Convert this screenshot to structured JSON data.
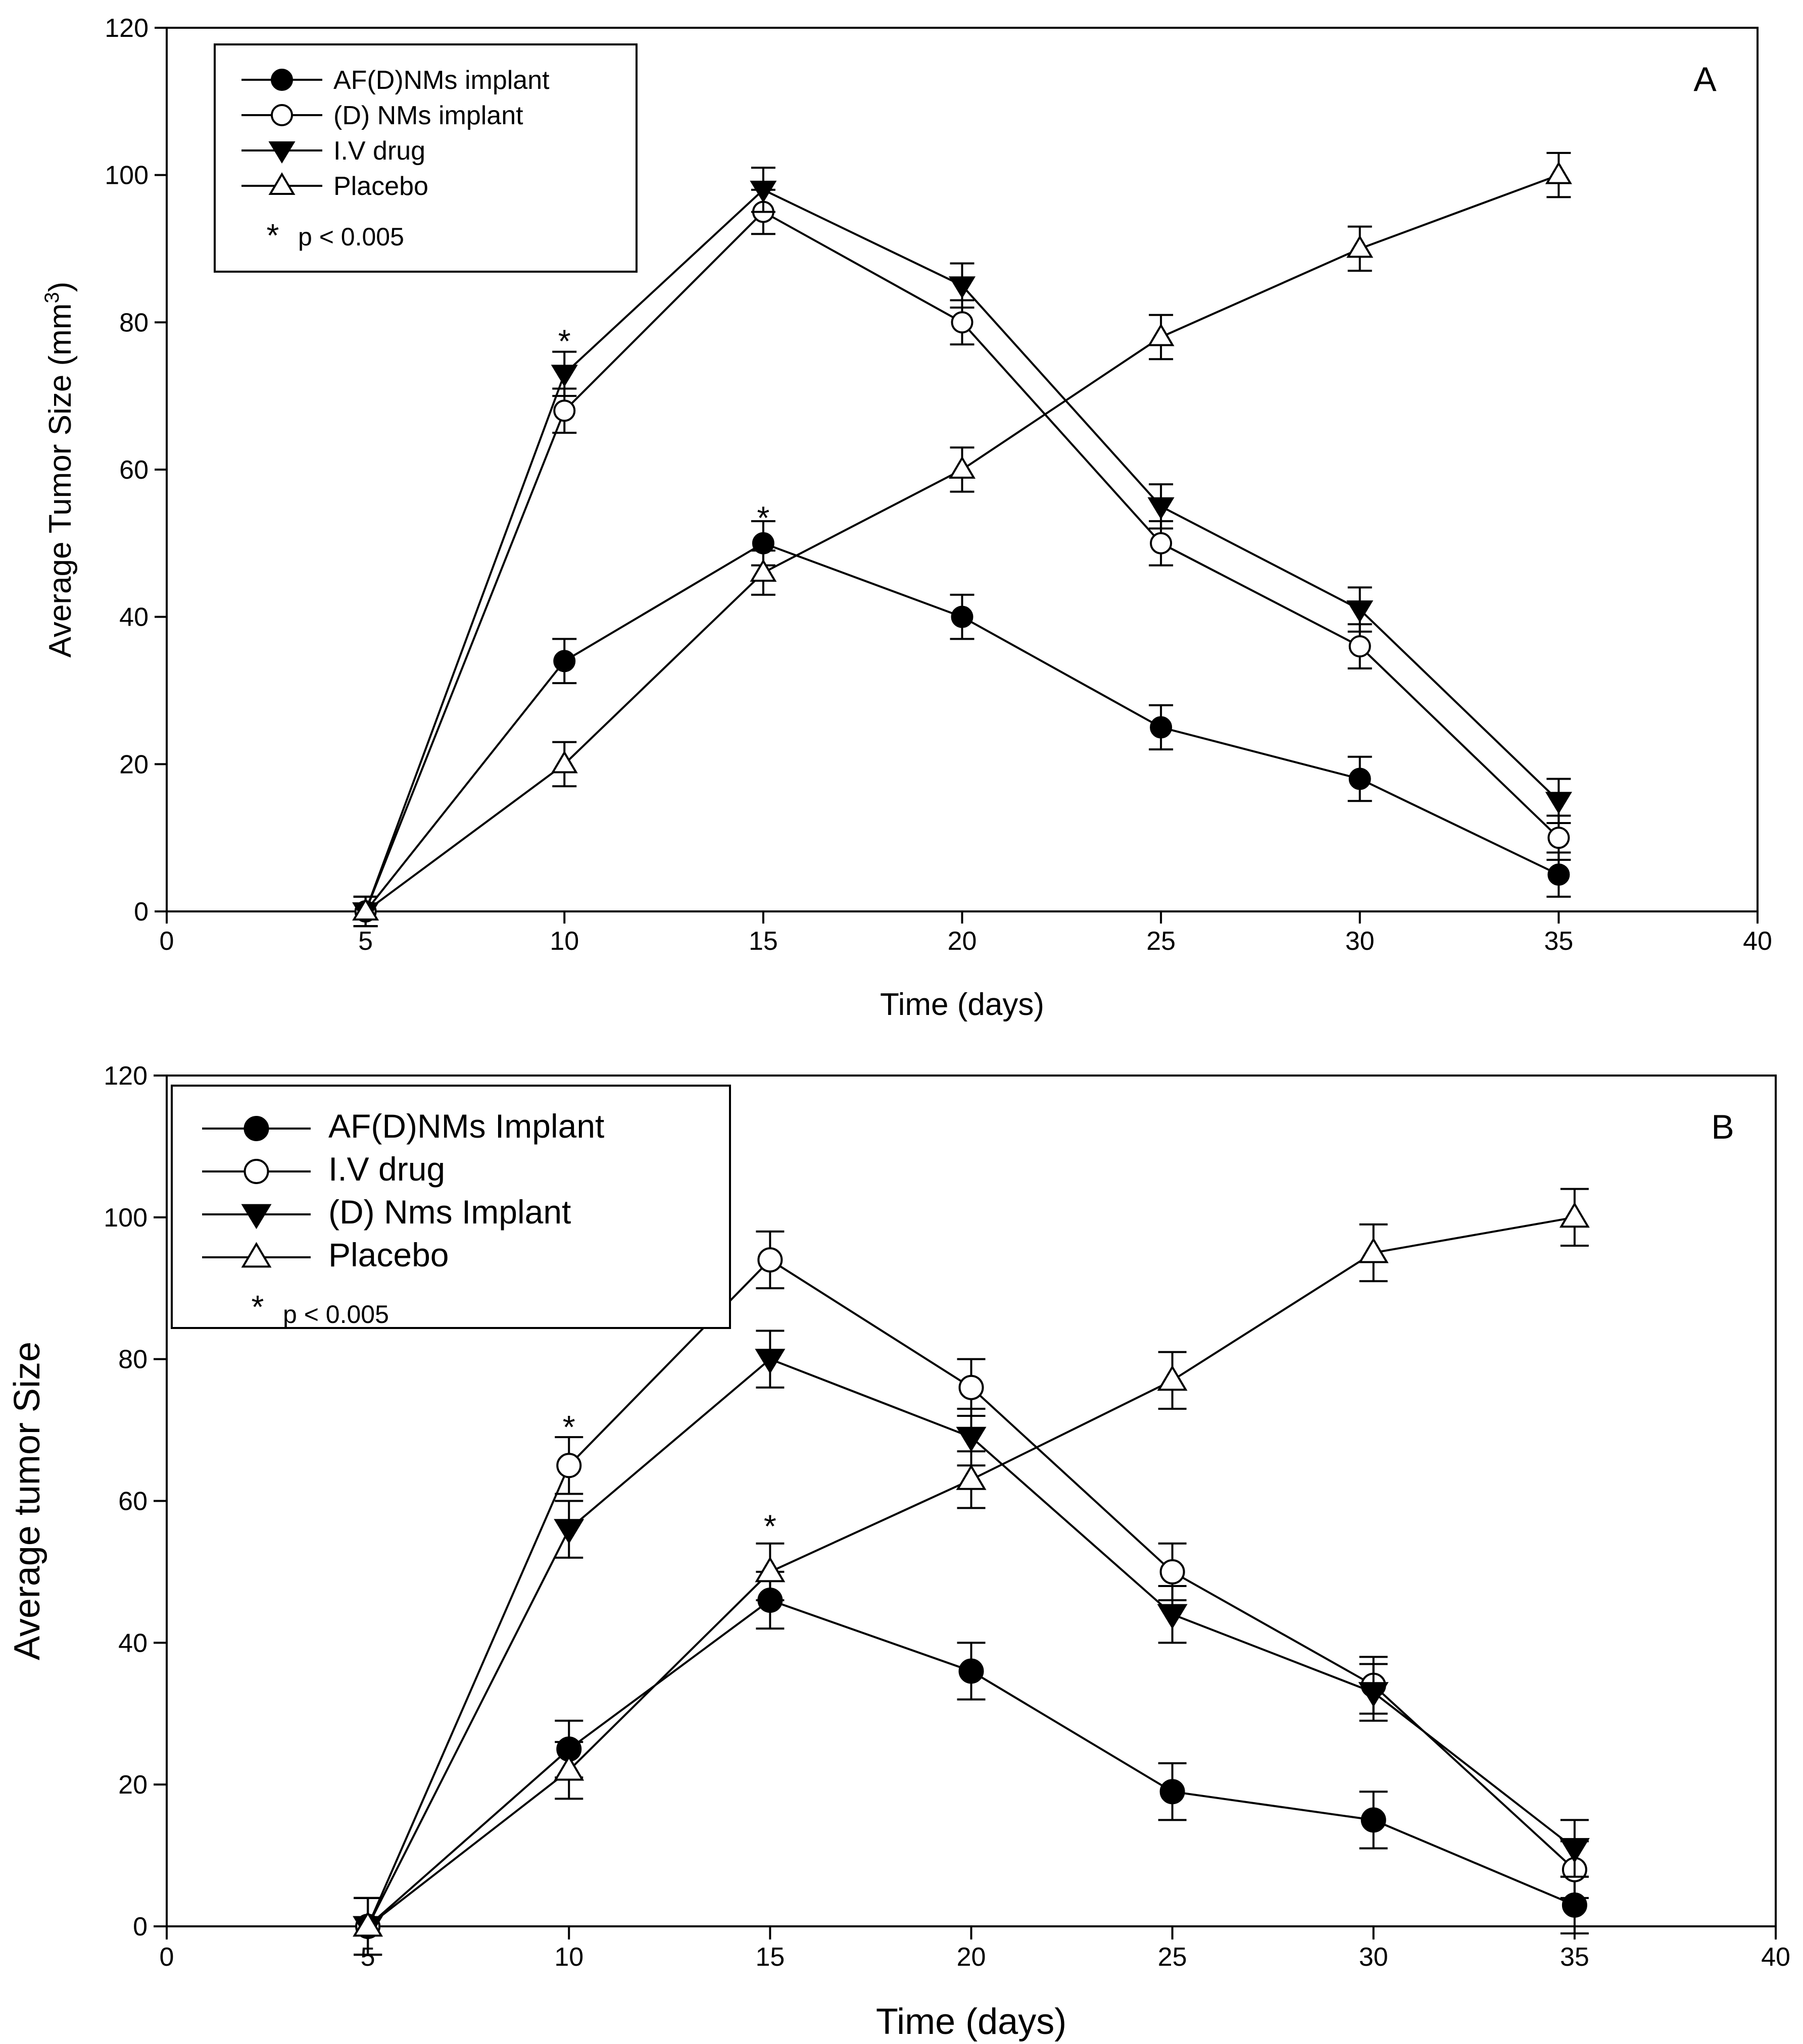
{
  "chart_data": [
    {
      "type": "line",
      "panel": "A",
      "xlabel": "Time (days)",
      "ylabel": "Average Tumor Size (mm",
      "ylabel_sup": "3",
      "ylabel_close": ")",
      "xlim": [
        0,
        40
      ],
      "ylim": [
        0,
        120
      ],
      "xticks": [
        0,
        5,
        10,
        15,
        20,
        25,
        30,
        35,
        40
      ],
      "yticks": [
        0,
        20,
        40,
        60,
        80,
        100,
        120
      ],
      "legend_placement": "top-left",
      "significance_note": "p < 0.005",
      "series": [
        {
          "name": "AF(D)NMs implant",
          "marker": "filled-circle",
          "x": [
            5,
            10,
            15,
            20,
            25,
            30,
            35
          ],
          "values": [
            0,
            34,
            50,
            40,
            25,
            18,
            5
          ],
          "errors": [
            2,
            3,
            3,
            3,
            3,
            3,
            3
          ]
        },
        {
          "name": "(D) NMs implant",
          "marker": "open-circle",
          "x": [
            5,
            10,
            15,
            20,
            25,
            30,
            35
          ],
          "values": [
            0,
            68,
            95,
            80,
            50,
            36,
            10
          ],
          "errors": [
            2,
            3,
            3,
            3,
            3,
            3,
            3
          ]
        },
        {
          "name": "I.V drug",
          "marker": "filled-triangle-down",
          "x": [
            5,
            10,
            15,
            20,
            25,
            30,
            35
          ],
          "values": [
            0,
            73,
            98,
            85,
            55,
            41,
            15
          ],
          "errors": [
            2,
            3,
            3,
            3,
            3,
            3,
            3
          ]
        },
        {
          "name": "Placebo",
          "marker": "open-triangle-up",
          "x": [
            5,
            10,
            15,
            20,
            25,
            30,
            35
          ],
          "values": [
            0,
            20,
            46,
            60,
            78,
            90,
            100
          ],
          "errors": [
            2,
            3,
            3,
            3,
            3,
            3,
            3
          ]
        }
      ],
      "annotations": [
        {
          "text": "*",
          "x": 10,
          "y": 78
        },
        {
          "text": "*",
          "x": 15,
          "y": 54
        }
      ]
    },
    {
      "type": "line",
      "panel": "B",
      "xlabel": "Time (days)",
      "ylabel": "Average tumor Size",
      "xlim": [
        0,
        40
      ],
      "ylim": [
        0,
        120
      ],
      "xticks": [
        0,
        5,
        10,
        15,
        20,
        25,
        30,
        35,
        40
      ],
      "yticks": [
        0,
        20,
        40,
        60,
        80,
        100,
        120
      ],
      "legend_placement": "top-left",
      "significance_note": "p < 0.005",
      "series": [
        {
          "name": "AF(D)NMs Implant",
          "marker": "filled-circle",
          "x": [
            5,
            10,
            15,
            20,
            25,
            30,
            35
          ],
          "values": [
            0,
            25,
            46,
            36,
            19,
            15,
            3
          ],
          "errors": [
            4,
            4,
            4,
            4,
            4,
            4,
            4
          ]
        },
        {
          "name": "I.V drug",
          "marker": "open-circle",
          "x": [
            5,
            10,
            15,
            20,
            25,
            30,
            35
          ],
          "values": [
            0,
            65,
            94,
            76,
            50,
            34,
            8
          ],
          "errors": [
            4,
            4,
            4,
            4,
            4,
            4,
            4
          ]
        },
        {
          "name": "(D) Nms Implant",
          "marker": "filled-triangle-down",
          "x": [
            5,
            10,
            15,
            20,
            25,
            30,
            35
          ],
          "values": [
            0,
            56,
            80,
            69,
            44,
            33,
            11
          ],
          "errors": [
            4,
            4,
            4,
            4,
            4,
            4,
            4
          ]
        },
        {
          "name": "Placebo",
          "marker": "open-triangle-up",
          "x": [
            5,
            10,
            15,
            20,
            25,
            30,
            35
          ],
          "values": [
            0,
            22,
            50,
            63,
            77,
            95,
            100
          ],
          "errors": [
            4,
            4,
            4,
            4,
            4,
            4,
            4
          ]
        }
      ],
      "annotations": [
        {
          "text": "*",
          "x": 10,
          "y": 71
        },
        {
          "text": "*",
          "x": 15,
          "y": 57
        }
      ]
    }
  ]
}
